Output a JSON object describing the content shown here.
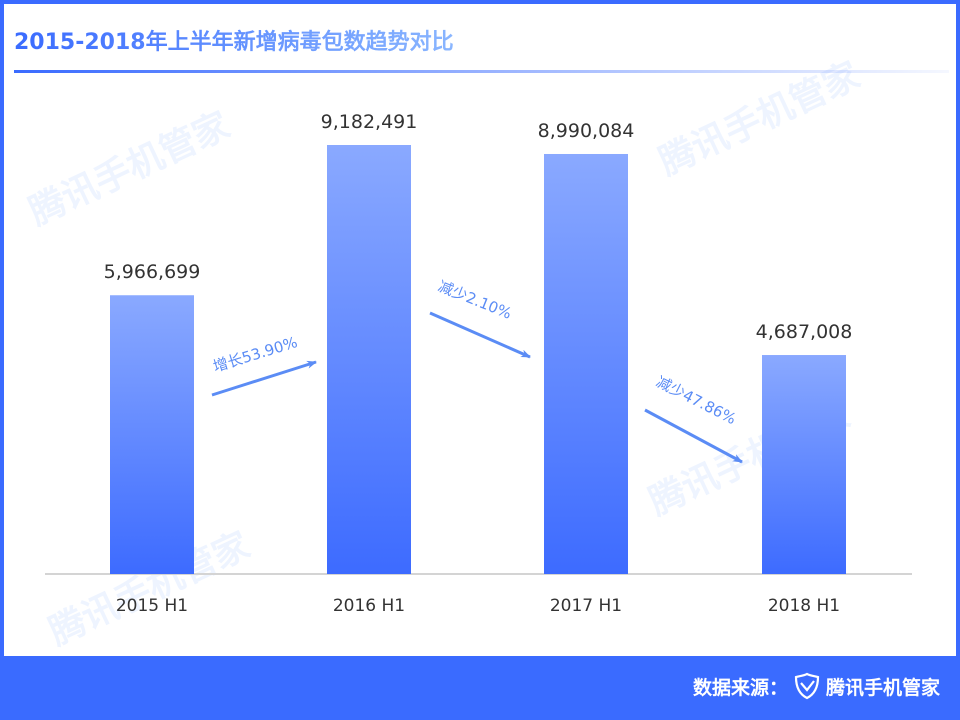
{
  "title": "2015-2018年上半年新增病毒包数趋势对比",
  "watermark": "腾讯手机管家",
  "footer": {
    "source_label": "数据来源：",
    "brand": "腾讯手机管家",
    "brand_icon": "shield-check-icon"
  },
  "colors": {
    "accent": "#3a6bff",
    "bar_top": "#8aa9ff",
    "bar_bottom": "#3d6bff",
    "annotation": "#5b8cf5"
  },
  "chart_data": {
    "type": "bar",
    "title": "2015-2018年上半年新增病毒包数趋势对比",
    "categories": [
      "2015 H1",
      "2016 H1",
      "2017 H1",
      "2018 H1"
    ],
    "values": [
      5966699,
      9182491,
      8990084,
      4687008
    ],
    "value_labels": [
      "5,966,699",
      "9,182,491",
      "8,990,084",
      "4,687,008"
    ],
    "annotations": [
      "增长53.90%",
      "减少2.10%",
      "减少47.86%"
    ],
    "grid": false
  }
}
